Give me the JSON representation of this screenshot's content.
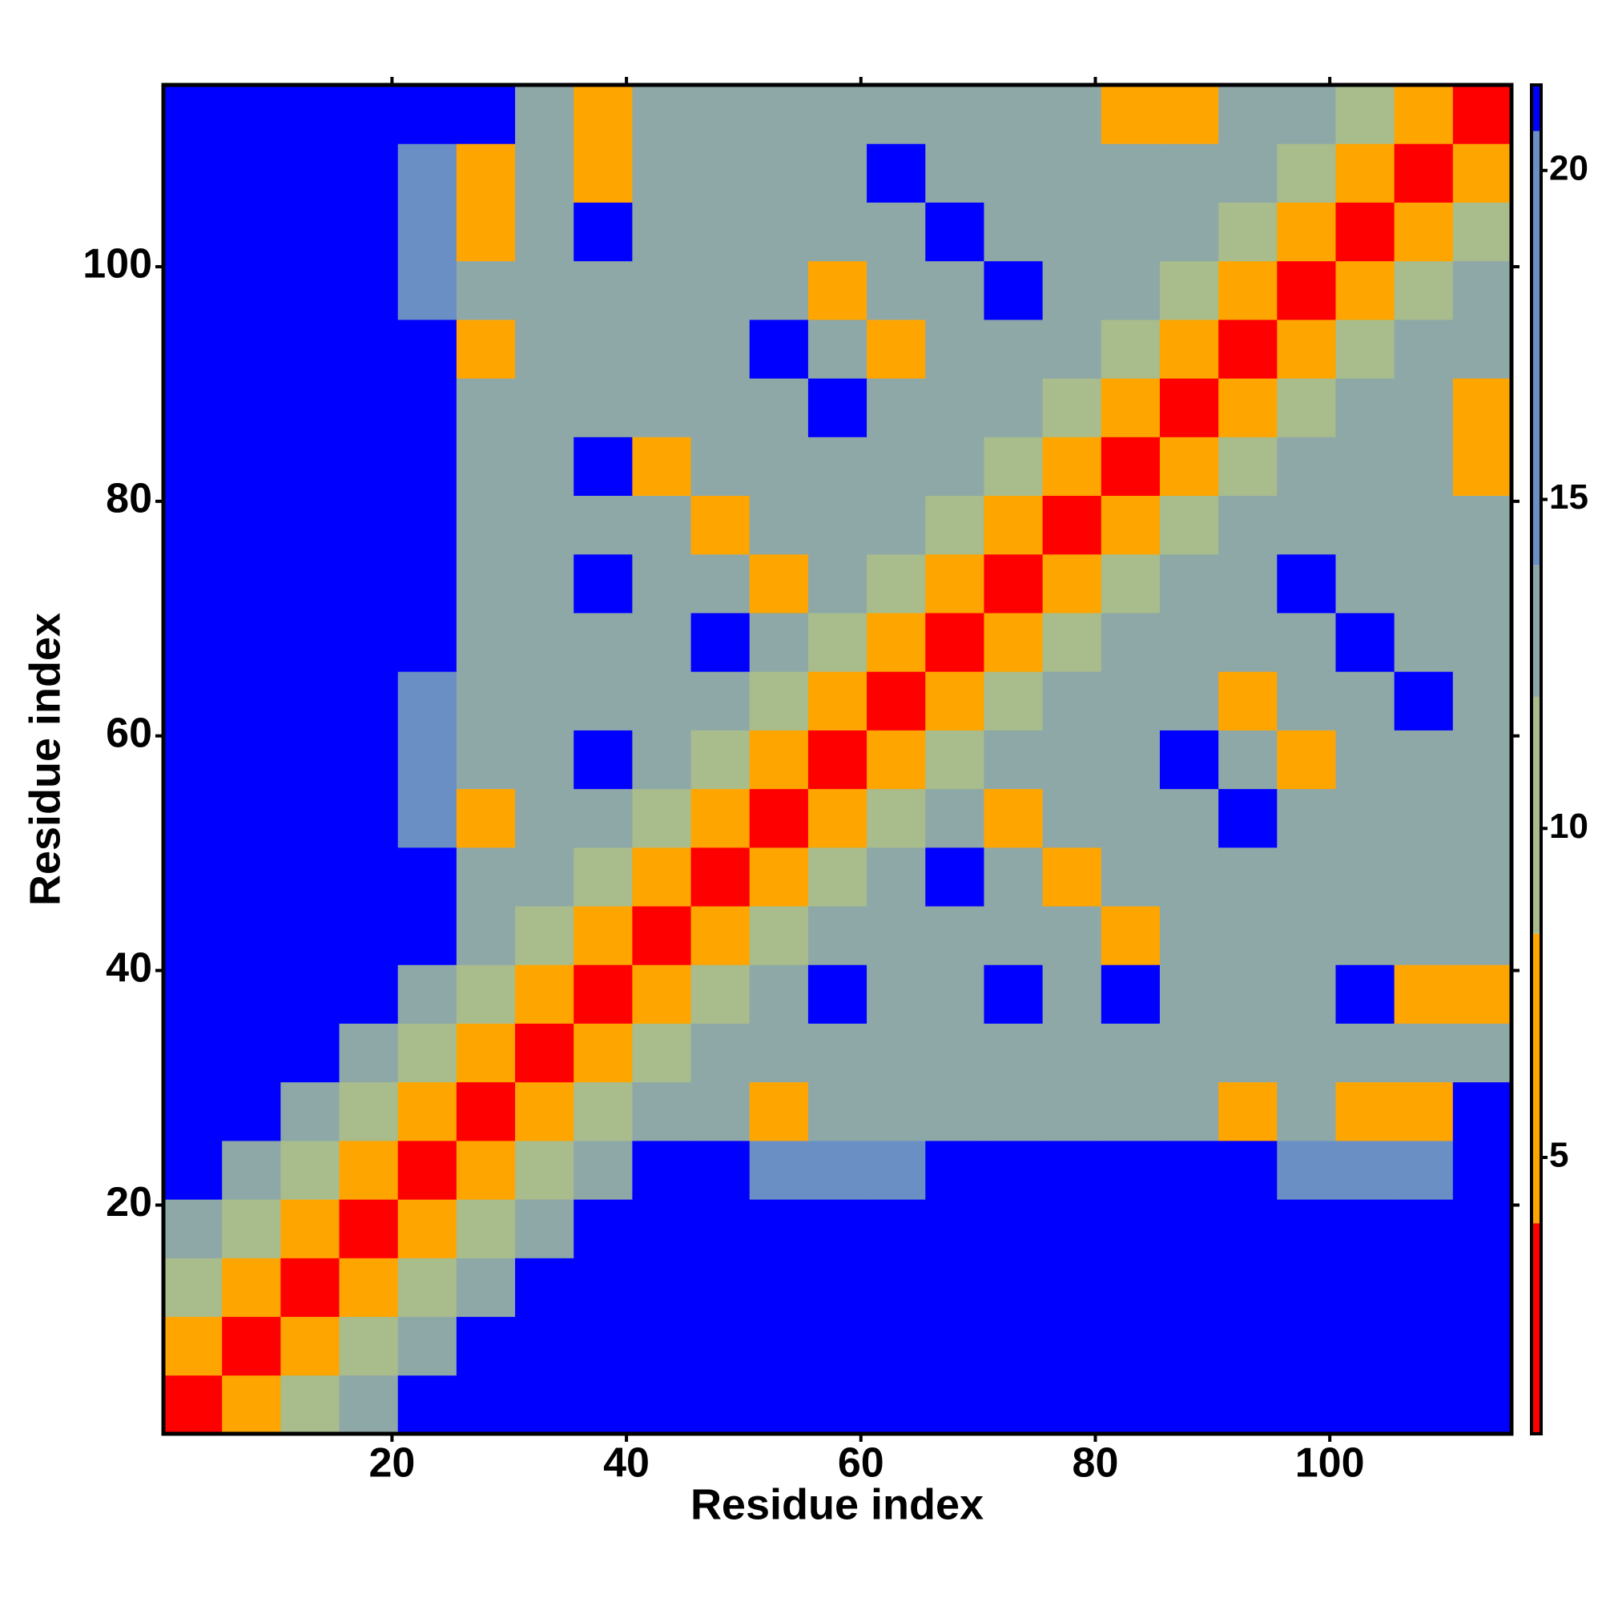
{
  "chart_data": {
    "type": "heatmap",
    "x_label": "Residue index",
    "y_label": "Residue index",
    "x": [
      3,
      8,
      13,
      18,
      23,
      28,
      33,
      38,
      43,
      48,
      53,
      58,
      63,
      68,
      73,
      78,
      83,
      88,
      93,
      98,
      103,
      108,
      113
    ],
    "y": [
      3,
      8,
      13,
      18,
      23,
      28,
      33,
      38,
      43,
      48,
      53,
      58,
      63,
      68,
      73,
      78,
      83,
      88,
      93,
      98,
      103,
      108,
      113
    ],
    "cell_size": 5,
    "xlim": [
      0.5,
      115.5
    ],
    "ylim": [
      0.5,
      115.5
    ],
    "xticks": [
      20,
      40,
      60,
      80,
      100
    ],
    "yticks": [
      20,
      40,
      60,
      80,
      100
    ],
    "zlim": [
      0.8,
      21.3
    ],
    "zticks": [
      5,
      10,
      15,
      20
    ],
    "colorscale": [
      [
        4,
        "#ff0000"
      ],
      [
        8.4,
        "#ffa500"
      ],
      [
        12,
        "#a8bc8c"
      ],
      [
        14,
        "#8ea8a8"
      ],
      [
        20.6,
        "#6a8fc4"
      ],
      [
        21.3,
        "#0000ff"
      ]
    ],
    "z": [
      [
        2,
        5,
        10,
        14,
        21,
        21,
        21,
        21,
        21,
        21,
        21,
        21,
        21,
        21,
        21,
        21,
        21,
        21,
        21,
        21,
        21,
        21,
        21
      ],
      [
        5,
        2,
        5,
        10,
        14,
        21,
        21,
        21,
        21,
        21,
        21,
        21,
        21,
        21,
        21,
        21,
        21,
        21,
        21,
        21,
        21,
        21,
        21
      ],
      [
        10,
        5,
        2,
        5,
        10,
        14,
        21,
        21,
        21,
        21,
        21,
        21,
        21,
        21,
        21,
        21,
        21,
        21,
        21,
        21,
        21,
        21,
        21
      ],
      [
        14,
        10,
        5,
        2,
        5,
        10,
        14,
        21,
        21,
        21,
        21,
        21,
        21,
        21,
        21,
        21,
        21,
        21,
        21,
        21,
        21,
        21,
        21
      ],
      [
        21,
        14,
        10,
        5,
        2,
        5,
        10,
        14,
        21,
        21,
        15,
        15,
        15,
        21,
        21,
        21,
        21,
        21,
        21,
        15,
        15,
        15,
        21
      ],
      [
        21,
        21,
        14,
        10,
        5,
        2,
        5,
        10,
        14,
        13,
        7,
        13,
        13,
        13,
        13,
        13,
        13,
        13,
        7,
        13,
        7,
        7,
        21
      ],
      [
        21,
        21,
        21,
        14,
        10,
        5,
        2,
        5,
        10,
        14,
        13,
        13,
        13,
        13,
        13,
        13,
        13,
        13,
        13,
        13,
        13,
        13,
        13
      ],
      [
        21,
        21,
        21,
        21,
        14,
        10,
        5,
        2,
        5,
        10,
        14,
        21,
        13,
        13,
        21,
        13,
        21,
        13,
        13,
        13,
        21,
        7,
        7
      ],
      [
        21,
        21,
        21,
        21,
        21,
        14,
        10,
        5,
        2,
        5,
        10,
        14,
        13,
        13,
        13,
        13,
        7,
        13,
        13,
        13,
        13,
        13,
        13
      ],
      [
        21,
        21,
        21,
        21,
        21,
        13,
        14,
        10,
        5,
        2,
        5,
        10,
        14,
        21,
        13,
        7,
        13,
        13,
        13,
        13,
        13,
        13,
        13
      ],
      [
        21,
        21,
        21,
        21,
        15,
        7,
        13,
        14,
        10,
        5,
        2,
        5,
        10,
        14,
        7,
        13,
        13,
        13,
        21,
        13,
        13,
        13,
        13
      ],
      [
        21,
        21,
        21,
        21,
        15,
        13,
        13,
        21,
        14,
        10,
        5,
        2,
        5,
        10,
        14,
        13,
        13,
        21,
        13,
        7,
        13,
        13,
        13
      ],
      [
        21,
        21,
        21,
        21,
        15,
        13,
        13,
        13,
        13,
        14,
        10,
        5,
        2,
        5,
        10,
        14,
        13,
        13,
        7,
        13,
        13,
        21,
        13
      ],
      [
        21,
        21,
        21,
        21,
        21,
        13,
        13,
        13,
        13,
        21,
        14,
        10,
        5,
        2,
        5,
        10,
        14,
        13,
        13,
        13,
        21,
        13,
        13
      ],
      [
        21,
        21,
        21,
        21,
        21,
        13,
        13,
        21,
        13,
        13,
        7,
        14,
        10,
        5,
        2,
        5,
        10,
        14,
        13,
        21,
        13,
        13,
        13
      ],
      [
        21,
        21,
        21,
        21,
        21,
        13,
        13,
        13,
        13,
        7,
        13,
        13,
        14,
        10,
        5,
        2,
        5,
        10,
        14,
        13,
        13,
        13,
        13
      ],
      [
        21,
        21,
        21,
        21,
        21,
        13,
        13,
        21,
        7,
        13,
        13,
        13,
        13,
        14,
        10,
        5,
        2,
        5,
        10,
        14,
        13,
        13,
        7
      ],
      [
        21,
        21,
        21,
        21,
        21,
        13,
        13,
        13,
        13,
        13,
        13,
        21,
        13,
        13,
        14,
        10,
        5,
        2,
        5,
        10,
        14,
        13,
        7
      ],
      [
        21,
        21,
        21,
        21,
        21,
        7,
        13,
        13,
        13,
        13,
        21,
        13,
        7,
        13,
        13,
        14,
        10,
        5,
        2,
        5,
        10,
        14,
        13
      ],
      [
        21,
        21,
        21,
        21,
        15,
        13,
        13,
        13,
        13,
        13,
        13,
        7,
        13,
        13,
        21,
        13,
        14,
        10,
        5,
        2,
        5,
        10,
        14
      ],
      [
        21,
        21,
        21,
        21,
        15,
        7,
        13,
        21,
        13,
        13,
        13,
        13,
        13,
        21,
        13,
        13,
        13,
        14,
        10,
        5,
        2,
        5,
        10
      ],
      [
        21,
        21,
        21,
        21,
        15,
        7,
        13,
        7,
        13,
        13,
        13,
        13,
        21,
        13,
        13,
        13,
        13,
        13,
        14,
        10,
        5,
        2,
        5
      ],
      [
        21,
        21,
        21,
        21,
        21,
        21,
        13,
        7,
        13,
        13,
        13,
        13,
        13,
        13,
        13,
        13,
        7,
        7,
        13,
        14,
        10,
        5,
        2
      ]
    ]
  }
}
